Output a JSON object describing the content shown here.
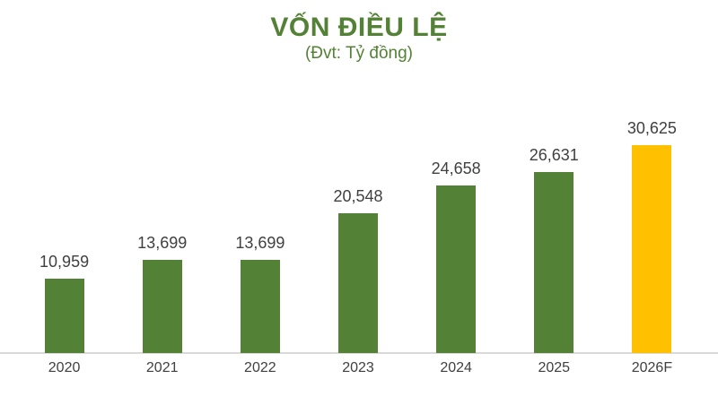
{
  "header": {
    "title": "VỐN ĐIỀU LỆ",
    "subtitle": "(Đvt: Tỷ đồng)"
  },
  "chart_data": {
    "type": "bar",
    "title": "VỐN ĐIỀU LỆ",
    "subtitle": "(Đvt: Tỷ đồng)",
    "categories": [
      "2020",
      "2021",
      "2022",
      "2023",
      "2024",
      "2025",
      "2026F"
    ],
    "values": [
      10959,
      13699,
      13699,
      20548,
      24658,
      26631,
      30625
    ],
    "value_labels": [
      "10,959",
      "13,699",
      "13,699",
      "20,548",
      "24,658",
      "26,631",
      "30,625"
    ],
    "bar_colors": [
      "#538135",
      "#538135",
      "#538135",
      "#538135",
      "#538135",
      "#538135",
      "#FFC000"
    ],
    "highlight_index": 6,
    "xlabel": "",
    "ylabel": "",
    "ylim": [
      0,
      30625
    ],
    "grid": false,
    "legend_position": "none"
  },
  "style": {
    "bar_green": "#538135",
    "bar_yellow": "#FFC000",
    "title_green": "#538135",
    "text_gray": "#404040",
    "axis_gray": "#D9D9D9",
    "background": "#FFFFFF"
  }
}
